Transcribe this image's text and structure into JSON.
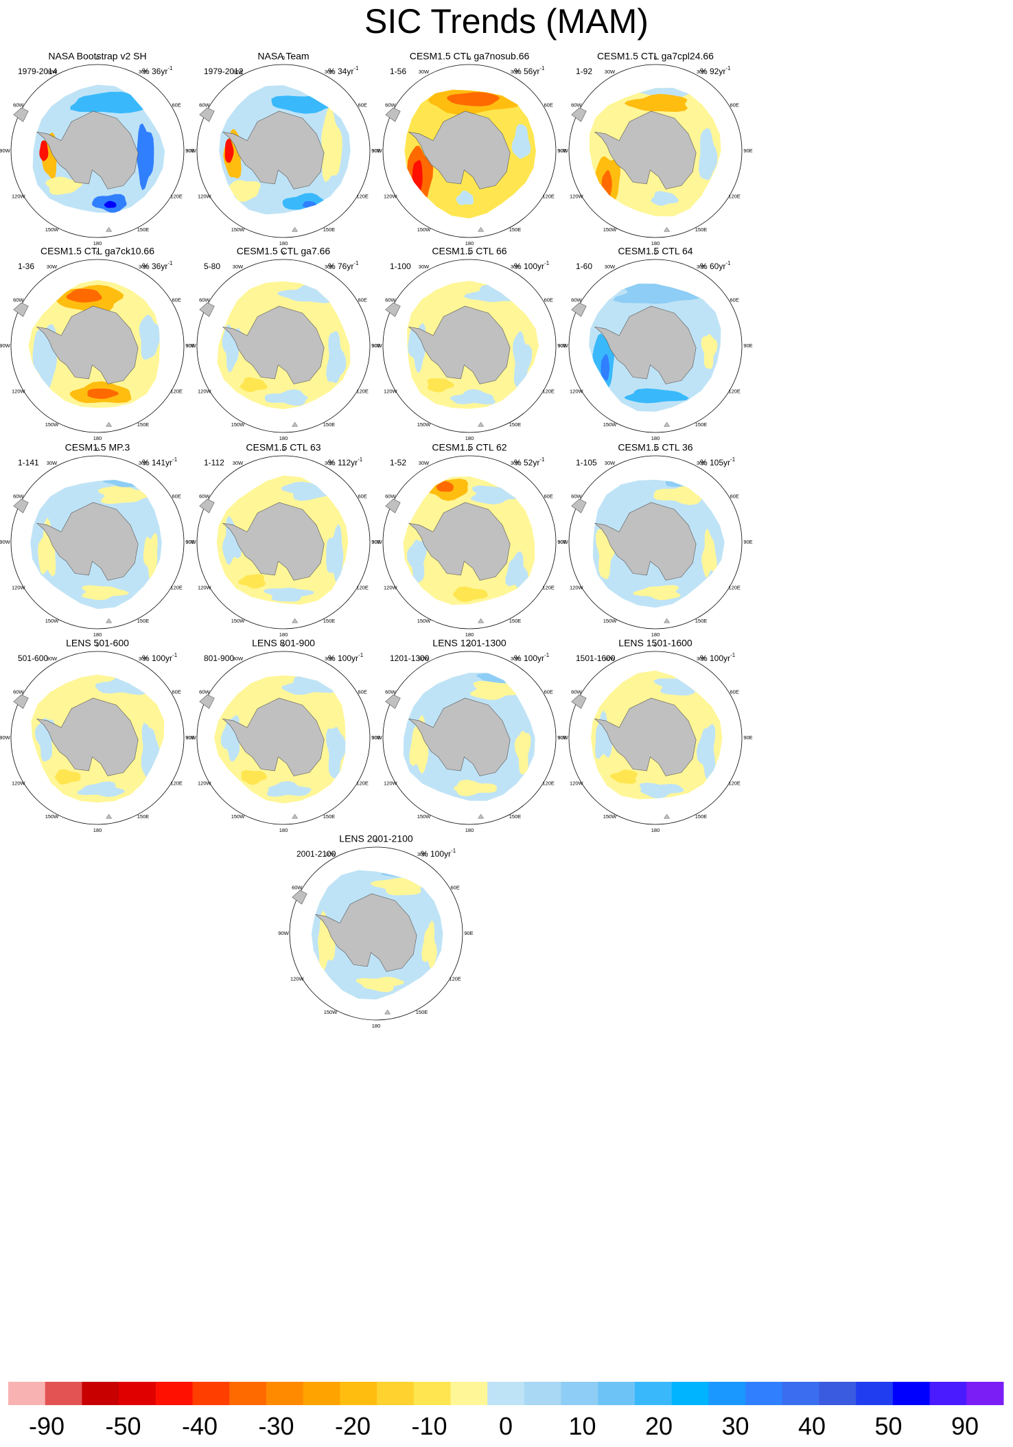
{
  "page_title": "SIC Trends (MAM)",
  "chart_data": {
    "type": "polar-map-panels",
    "title": "SIC Trends (MAM)",
    "lon_labels": [
      "0",
      "30E",
      "60E",
      "90E",
      "120E",
      "150E",
      "180",
      "150W",
      "120W",
      "90W",
      "60W",
      "30W"
    ],
    "panels": [
      {
        "title": "NASA Bootstrap v2 SH",
        "left_label": "1979-2014",
        "unit": "% 36yr",
        "unit_exp": "-1",
        "pattern": "obs_a"
      },
      {
        "title": "NASA Team",
        "left_label": "1979-2012",
        "unit": "% 34yr",
        "unit_exp": "-1",
        "pattern": "obs_b"
      },
      {
        "title": "CESM1.5 CTL ga7nosub.66",
        "left_label": "1-56",
        "unit": "% 56yr",
        "unit_exp": "-1",
        "pattern": "red_strong"
      },
      {
        "title": "CESM1.5 CTL ga7cpl24.66",
        "left_label": "1-92",
        "unit": "% 92yr",
        "unit_exp": "-1",
        "pattern": "red_mod"
      },
      {
        "title": "CESM1.5 CTL ga7ck10.66",
        "left_label": "1-36",
        "unit": "% 36yr",
        "unit_exp": "-1",
        "pattern": "red_ck10"
      },
      {
        "title": "CESM1.5 CTL ga7.66",
        "left_label": "5-80",
        "unit": "% 76yr",
        "unit_exp": "-1",
        "pattern": "mix_yellow"
      },
      {
        "title": "CESM1.5 CTL 66",
        "left_label": "1-100",
        "unit": "% 100yr",
        "unit_exp": "-1",
        "pattern": "mix_yellow"
      },
      {
        "title": "CESM1.5 CTL 64",
        "left_label": "1-60",
        "unit": "% 60yr",
        "unit_exp": "-1",
        "pattern": "blue_ring"
      },
      {
        "title": "CESM1.5 MP.3",
        "left_label": "1-141",
        "unit": "% 141yr",
        "unit_exp": "-1",
        "pattern": "mix_blue"
      },
      {
        "title": "CESM1.5 CTL 63",
        "left_label": "1-112",
        "unit": "% 112yr",
        "unit_exp": "-1",
        "pattern": "mix_yellow"
      },
      {
        "title": "CESM1.5 CTL 62",
        "left_label": "1-52",
        "unit": "% 52yr",
        "unit_exp": "-1",
        "pattern": "mix_orange"
      },
      {
        "title": "CESM1.5 CTL 36",
        "left_label": "1-105",
        "unit": "% 105yr",
        "unit_exp": "-1",
        "pattern": "mix_blue"
      },
      {
        "title": "LENS 501-600",
        "left_label": "501-600",
        "unit": "% 100yr",
        "unit_exp": "-1",
        "pattern": "mix_yellow"
      },
      {
        "title": "LENS 801-900",
        "left_label": "801-900",
        "unit": "% 100yr",
        "unit_exp": "-1",
        "pattern": "mix_yellow"
      },
      {
        "title": "LENS 1201-1300",
        "left_label": "1201-1300",
        "unit": "% 100yr",
        "unit_exp": "-1",
        "pattern": "mix_blue"
      },
      {
        "title": "LENS 1501-1600",
        "left_label": "1501-1600",
        "unit": "% 100yr",
        "unit_exp": "-1",
        "pattern": "mix_yellow"
      },
      {
        "title": "LENS 2001-2100",
        "left_label": "2001-2100",
        "unit": "% 100yr",
        "unit_exp": "-1",
        "pattern": "mix_blue"
      }
    ],
    "colorbar": {
      "tick_labels": [
        "-90",
        "-50",
        "-40",
        "-30",
        "-20",
        "-10",
        "0",
        "10",
        "20",
        "30",
        "40",
        "50",
        "90"
      ],
      "colors": [
        "#f9b2b2",
        "#e35354",
        "#c80000",
        "#e00000",
        "#ff1000",
        "#ff3e00",
        "#ff6a00",
        "#ff8a00",
        "#ffa300",
        "#ffbd10",
        "#ffd22f",
        "#ffe650",
        "#fff697",
        "#bfe3f6",
        "#a8d8f4",
        "#8ecdf5",
        "#6ec3f6",
        "#39b9fb",
        "#00b4ff",
        "#1a98ff",
        "#307fff",
        "#3a6df0",
        "#3a5ae0",
        "#203ef0",
        "#0000ff",
        "#4b1bff",
        "#7a1ef5"
      ]
    },
    "palette": {
      "land": "#c0c0c0",
      "yellow": "#fff697",
      "light_yellow": "#ffe650",
      "orange": "#ffbd10",
      "deep_orange": "#ff6a00",
      "red": "#ff1000",
      "light_blue": "#bfe3f6",
      "mid_blue": "#8ecdf5",
      "blue": "#39b9fb",
      "deep_blue": "#307fff",
      "navy": "#0000ff"
    }
  }
}
